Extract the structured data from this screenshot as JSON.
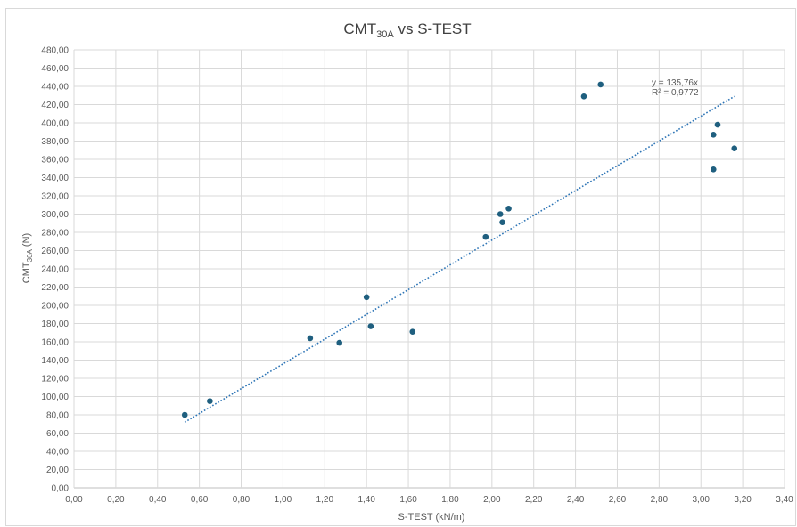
{
  "chart_data": {
    "type": "scatter",
    "title": {
      "main": "CMT",
      "sub": "30A",
      "rest": " vs S-TEST"
    },
    "xlabel": "S-TEST  (kN/m)",
    "ylabel": {
      "main": "CMT",
      "sub": "30A",
      "rest": " (N)"
    },
    "xlim": [
      0,
      3.4
    ],
    "ylim": [
      0,
      480
    ],
    "x_ticks": [
      "0,00",
      "0,20",
      "0,40",
      "0,60",
      "0,80",
      "1,00",
      "1,20",
      "1,40",
      "1,60",
      "1,80",
      "2,00",
      "2,20",
      "2,40",
      "2,60",
      "2,80",
      "3,00",
      "3,20",
      "3,40"
    ],
    "y_ticks": [
      "0,00",
      "20,00",
      "40,00",
      "60,00",
      "80,00",
      "100,00",
      "120,00",
      "140,00",
      "160,00",
      "180,00",
      "200,00",
      "220,00",
      "240,00",
      "260,00",
      "280,00",
      "300,00",
      "320,00",
      "340,00",
      "360,00",
      "380,00",
      "400,00",
      "420,00",
      "440,00",
      "460,00",
      "480,00"
    ],
    "grid": true,
    "legend": "none",
    "colors": {
      "points": "#1f5f7f",
      "trendline": "#2e75b6",
      "grid": "#d9d9d9"
    },
    "series": [
      {
        "points": [
          {
            "x": 0.53,
            "y": 80
          },
          {
            "x": 0.65,
            "y": 95
          },
          {
            "x": 1.13,
            "y": 164
          },
          {
            "x": 1.27,
            "y": 159
          },
          {
            "x": 1.4,
            "y": 209
          },
          {
            "x": 1.42,
            "y": 177
          },
          {
            "x": 1.62,
            "y": 171
          },
          {
            "x": 1.97,
            "y": 275
          },
          {
            "x": 2.04,
            "y": 300
          },
          {
            "x": 2.05,
            "y": 291
          },
          {
            "x": 2.08,
            "y": 306
          },
          {
            "x": 2.44,
            "y": 429
          },
          {
            "x": 2.52,
            "y": 442
          },
          {
            "x": 3.06,
            "y": 349
          },
          {
            "x": 3.06,
            "y": 387
          },
          {
            "x": 3.08,
            "y": 398
          },
          {
            "x": 3.16,
            "y": 372
          }
        ]
      }
    ],
    "trendline": {
      "slope": 135.76,
      "x_range": [
        0.53,
        3.16
      ],
      "equation": "y = 135,76x",
      "r_squared": "R² = 0,9772"
    }
  }
}
